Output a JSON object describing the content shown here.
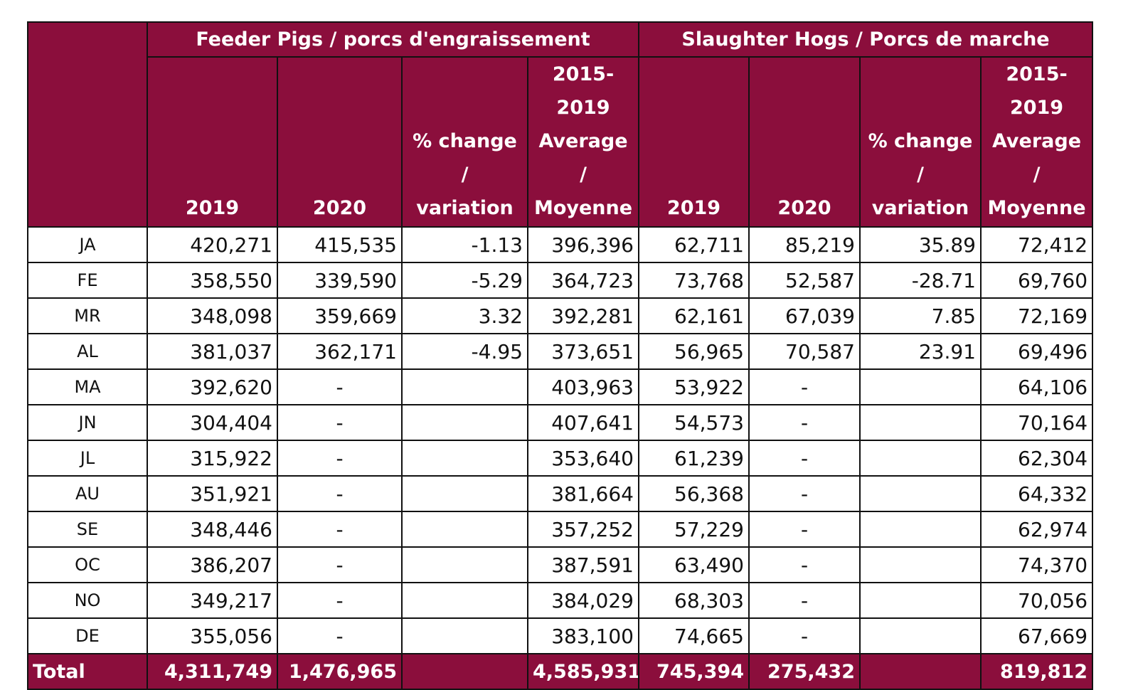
{
  "groups": {
    "feeder": "Feeder Pigs / porcs d'engraissement",
    "slaughter": "Slaughter Hogs / Porcs de marche"
  },
  "columns": {
    "feeder": {
      "y2019": "2019",
      "y2020": "2020",
      "pct_line1": "% change /",
      "pct_line2": "variation",
      "avg_line1": "2015-",
      "avg_line2": "2019",
      "avg_line3": "Average /",
      "avg_line4": "Moyenne"
    },
    "slaughter": {
      "y2019": "2019",
      "y2020": "2020",
      "pct_line1": "% change /",
      "pct_line2": "variation",
      "avg_line1": "2015-",
      "avg_line2": "2019",
      "avg_line3": "Average /",
      "avg_line4": "Moyenne"
    }
  },
  "rows": [
    {
      "month": "JA",
      "f2019": "420,271",
      "f2020": "415,535",
      "fpct": "-1.13",
      "favg": "396,396",
      "s2019": "62,711",
      "s2020": "85,219",
      "spct": "35.89",
      "savg": "72,412"
    },
    {
      "month": "FE",
      "f2019": "358,550",
      "f2020": "339,590",
      "fpct": "-5.29",
      "favg": "364,723",
      "s2019": "73,768",
      "s2020": "52,587",
      "spct": "-28.71",
      "savg": "69,760"
    },
    {
      "month": "MR",
      "f2019": "348,098",
      "f2020": "359,669",
      "fpct": "3.32",
      "favg": "392,281",
      "s2019": "62,161",
      "s2020": "67,039",
      "spct": "7.85",
      "savg": "72,169"
    },
    {
      "month": "AL",
      "f2019": "381,037",
      "f2020": "362,171",
      "fpct": "-4.95",
      "favg": "373,651",
      "s2019": "56,965",
      "s2020": "70,587",
      "spct": "23.91",
      "savg": "69,496"
    },
    {
      "month": "MA",
      "f2019": "392,620",
      "f2020": "-",
      "fpct": "",
      "favg": "403,963",
      "s2019": "53,922",
      "s2020": "-",
      "spct": "",
      "savg": "64,106"
    },
    {
      "month": "JN",
      "f2019": "304,404",
      "f2020": "-",
      "fpct": "",
      "favg": "407,641",
      "s2019": "54,573",
      "s2020": "-",
      "spct": "",
      "savg": "70,164"
    },
    {
      "month": "JL",
      "f2019": "315,922",
      "f2020": "-",
      "fpct": "",
      "favg": "353,640",
      "s2019": "61,239",
      "s2020": "-",
      "spct": "",
      "savg": "62,304"
    },
    {
      "month": "AU",
      "f2019": "351,921",
      "f2020": "-",
      "fpct": "",
      "favg": "381,664",
      "s2019": "56,368",
      "s2020": "-",
      "spct": "",
      "savg": "64,332"
    },
    {
      "month": "SE",
      "f2019": "348,446",
      "f2020": "-",
      "fpct": "",
      "favg": "357,252",
      "s2019": "57,229",
      "s2020": "-",
      "spct": "",
      "savg": "62,974"
    },
    {
      "month": "OC",
      "f2019": "386,207",
      "f2020": "-",
      "fpct": "",
      "favg": "387,591",
      "s2019": "63,490",
      "s2020": "-",
      "spct": "",
      "savg": "74,370"
    },
    {
      "month": "NO",
      "f2019": "349,217",
      "f2020": "-",
      "fpct": "",
      "favg": "384,029",
      "s2019": "68,303",
      "s2020": "-",
      "spct": "",
      "savg": "70,056"
    },
    {
      "month": "DE",
      "f2019": "355,056",
      "f2020": "-",
      "fpct": "",
      "favg": "383,100",
      "s2019": "74,665",
      "s2020": "-",
      "spct": "",
      "savg": "67,669"
    }
  ],
  "total": {
    "label": "Total",
    "f2019": "4,311,749",
    "f2020": "1,476,965",
    "fpct": "",
    "favg": "4,585,931",
    "s2019": "745,394",
    "s2020": "275,432",
    "spct": "",
    "savg": "819,812"
  },
  "colors": {
    "header_bg": "#8b0e3c",
    "header_text": "#ffffff",
    "border": "#111111"
  }
}
